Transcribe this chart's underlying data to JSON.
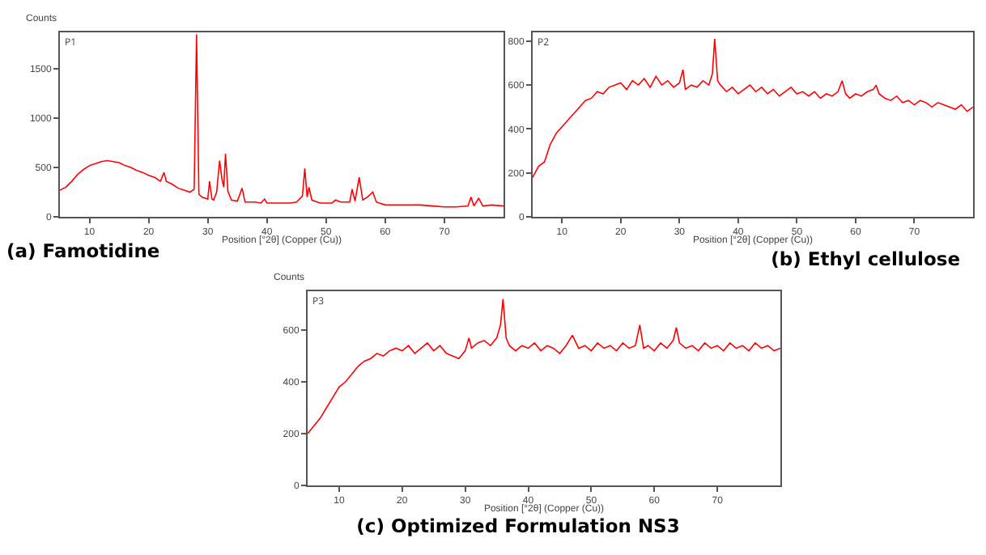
{
  "chart_data": [
    {
      "type": "line",
      "title": "(a) Famotidine",
      "xlabel": "Position [°2θ] (Copper (Cu))",
      "ylabel": "Counts",
      "annotations": [
        "P1"
      ],
      "xlim": [
        5,
        80
      ],
      "xticks": [
        10,
        20,
        30,
        40,
        50,
        60,
        70
      ],
      "ylim": [
        0,
        1870
      ],
      "yticks": [
        0,
        500,
        1000,
        1500
      ],
      "grid": false,
      "x": [
        5,
        6,
        7,
        8,
        9,
        10,
        11,
        12,
        13,
        14,
        15,
        16,
        17,
        18,
        19,
        20,
        21,
        22,
        22.6,
        23,
        24,
        25,
        26,
        27,
        27.7,
        28.1,
        28.5,
        29,
        30,
        30.3,
        30.7,
        31,
        31.5,
        32,
        32.4,
        32.7,
        33,
        33.4,
        34,
        35,
        35.8,
        36.3,
        37,
        38,
        39,
        39.6,
        40,
        42,
        44,
        45,
        46,
        46.4,
        46.8,
        47.1,
        47.6,
        49,
        51,
        51.6,
        52.5,
        54,
        54.4,
        54.9,
        55.6,
        56.2,
        57,
        57.9,
        58.5,
        60,
        62,
        63,
        64,
        66,
        68,
        70,
        72,
        74,
        74.5,
        75,
        75.8,
        76.5,
        78,
        80
      ],
      "series": [
        {
          "color": "#ff0000",
          "values": [
            270,
            300,
            360,
            430,
            480,
            520,
            540,
            560,
            570,
            560,
            550,
            520,
            500,
            470,
            450,
            420,
            400,
            360,
            450,
            360,
            330,
            290,
            270,
            250,
            280,
            1850,
            230,
            200,
            180,
            360,
            180,
            170,
            250,
            570,
            380,
            300,
            640,
            260,
            170,
            160,
            290,
            150,
            150,
            150,
            140,
            180,
            140,
            140,
            140,
            150,
            210,
            490,
            200,
            300,
            170,
            140,
            140,
            170,
            150,
            150,
            280,
            160,
            400,
            170,
            200,
            250,
            150,
            120,
            120,
            120,
            120,
            120,
            110,
            100,
            100,
            110,
            200,
            110,
            190,
            110,
            120,
            110
          ]
        }
      ]
    },
    {
      "type": "line",
      "title": "(b) Ethyl cellulose",
      "xlabel": "Position [°2θ] (Copper (Cu))",
      "annotations": [
        "P2"
      ],
      "xlim": [
        5,
        80
      ],
      "xticks": [
        10,
        20,
        30,
        40,
        50,
        60,
        70
      ],
      "ylim": [
        0,
        840
      ],
      "yticks": [
        0,
        200,
        400,
        600,
        800
      ],
      "grid": false,
      "x": [
        5,
        6,
        7,
        8,
        9,
        10,
        11,
        12,
        13,
        14,
        15,
        16,
        17,
        18,
        19,
        20,
        21,
        22,
        23,
        24,
        25,
        26,
        27,
        28,
        29,
        30,
        30.6,
        31,
        32,
        33,
        34,
        35,
        35.6,
        36,
        36.5,
        37,
        38,
        39,
        40,
        41,
        42,
        43,
        44,
        45,
        46,
        47,
        48,
        49,
        50,
        51,
        52,
        53,
        54,
        55,
        56,
        57,
        57.7,
        58.3,
        59,
        60,
        61,
        62,
        63,
        63.5,
        64,
        65,
        66,
        67,
        68,
        69,
        70,
        71,
        72,
        73,
        74,
        75,
        76,
        77,
        78,
        79,
        80
      ],
      "series": [
        {
          "color": "#ff0000",
          "values": [
            180,
            230,
            250,
            330,
            380,
            410,
            440,
            470,
            500,
            530,
            540,
            570,
            560,
            590,
            600,
            610,
            580,
            620,
            600,
            630,
            590,
            640,
            600,
            620,
            590,
            610,
            670,
            580,
            600,
            590,
            620,
            600,
            650,
            810,
            620,
            600,
            570,
            590,
            560,
            580,
            600,
            570,
            590,
            560,
            580,
            550,
            570,
            590,
            560,
            570,
            550,
            570,
            540,
            560,
            550,
            570,
            620,
            560,
            540,
            560,
            550,
            570,
            580,
            600,
            560,
            540,
            530,
            550,
            520,
            530,
            510,
            530,
            520,
            500,
            520,
            510,
            500,
            490,
            510,
            480,
            500
          ]
        }
      ]
    },
    {
      "type": "line",
      "title": "(c) Optimized Formulation NS3",
      "xlabel": "Position [°2θ] (Copper (Cu))",
      "ylabel": "Counts",
      "annotations": [
        "P3"
      ],
      "xlim": [
        5,
        80
      ],
      "xticks": [
        10,
        20,
        30,
        40,
        50,
        60,
        70
      ],
      "ylim": [
        0,
        750
      ],
      "yticks": [
        0,
        200,
        400,
        600
      ],
      "grid": false,
      "x": [
        5,
        6,
        7,
        8,
        9,
        10,
        11,
        12,
        13,
        14,
        15,
        16,
        17,
        18,
        19,
        20,
        21,
        22,
        23,
        24,
        25,
        26,
        27,
        28,
        29,
        30,
        30.6,
        31,
        32,
        33,
        34,
        35,
        35.6,
        36,
        36.5,
        37,
        38,
        39,
        40,
        41,
        42,
        43,
        44,
        45,
        46,
        47,
        48,
        49,
        50,
        51,
        52,
        53,
        54,
        55,
        56,
        57,
        57.7,
        58.3,
        59,
        60,
        61,
        62,
        63,
        63.5,
        64,
        65,
        66,
        67,
        68,
        69,
        70,
        71,
        72,
        73,
        74,
        75,
        76,
        77,
        78,
        79,
        80
      ],
      "series": [
        {
          "color": "#ff0000",
          "values": [
            200,
            230,
            260,
            300,
            340,
            380,
            400,
            430,
            460,
            480,
            490,
            510,
            500,
            520,
            530,
            520,
            540,
            510,
            530,
            550,
            520,
            540,
            510,
            500,
            490,
            520,
            570,
            530,
            550,
            560,
            540,
            570,
            620,
            720,
            570,
            540,
            520,
            540,
            530,
            550,
            520,
            540,
            530,
            510,
            540,
            580,
            530,
            540,
            520,
            550,
            530,
            540,
            520,
            550,
            530,
            540,
            620,
            530,
            540,
            520,
            550,
            530,
            560,
            610,
            550,
            530,
            540,
            520,
            550,
            530,
            540,
            520,
            550,
            530,
            540,
            520,
            550,
            530,
            540,
            520,
            530
          ]
        }
      ]
    }
  ]
}
